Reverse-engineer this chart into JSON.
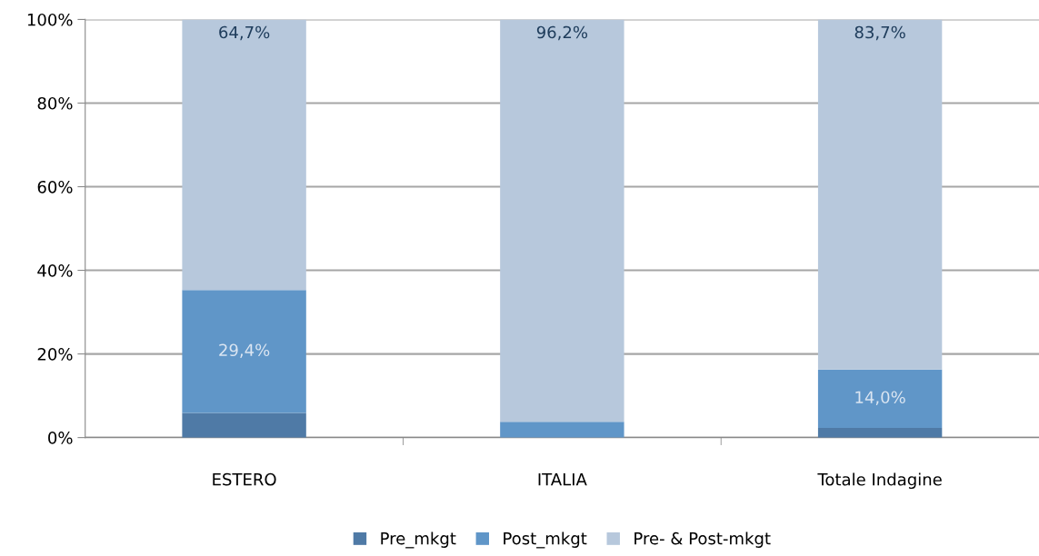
{
  "chart_data": {
    "type": "bar",
    "stacked": true,
    "categories": [
      "ESTERO",
      "ITALIA",
      "Totale Indagine"
    ],
    "series": [
      {
        "name": "Pre_mkgt",
        "color": "#4f7aa6",
        "values": [
          5.9,
          0,
          2.3
        ],
        "value_labels": [
          null,
          null,
          null
        ]
      },
      {
        "name": "Post_mkgt",
        "color": "#6096c8",
        "values": [
          29.4,
          3.8,
          14.0
        ],
        "value_labels": [
          "29,4%",
          null,
          "14,0%"
        ]
      },
      {
        "name": "Pre- & Post-mkgt",
        "color": "#b7c8dc",
        "values": [
          64.7,
          96.2,
          83.7
        ],
        "value_labels": [
          "64,7%",
          "96,2%",
          "83,7%"
        ]
      }
    ],
    "ylim": [
      0,
      100
    ],
    "yticks": [
      {
        "value": 0,
        "label": "0%"
      },
      {
        "value": 20,
        "label": "20%"
      },
      {
        "value": 40,
        "label": "40%"
      },
      {
        "value": 60,
        "label": "60%"
      },
      {
        "value": 80,
        "label": "80%"
      },
      {
        "value": 100,
        "label": "100%"
      }
    ],
    "grid": "y",
    "legend": "bottom"
  }
}
